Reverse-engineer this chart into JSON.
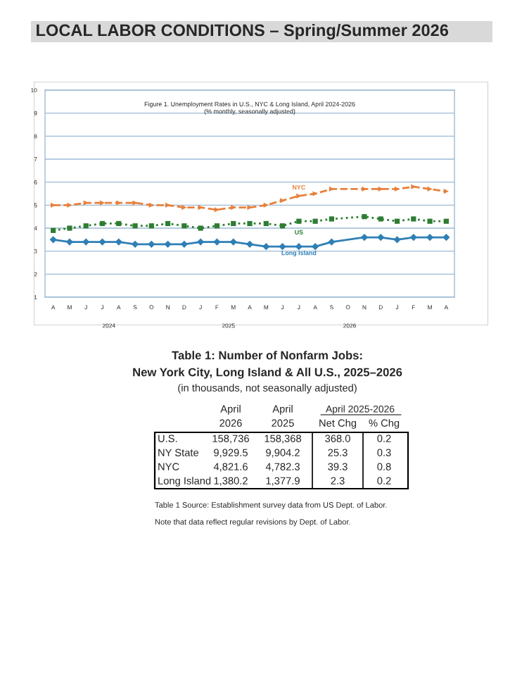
{
  "chart_data": [
    {
      "type": "other",
      "title": "LOCAL LABOR CONDITIONS – Spring/Summer 2026"
    },
    {
      "type": "line",
      "title": "Figure 1. Unemployment Rates in U.S., NYC & Long Island, April 2024-2026",
      "subtitle": "(% monthly, seasonally adjusted)",
      "categories": [
        "A",
        "M",
        "J",
        "J",
        "A",
        "S",
        "O",
        "N",
        "D",
        "J",
        "F",
        "M",
        "A",
        "M",
        "J",
        "J",
        "A",
        "S",
        "O",
        "N",
        "D",
        "J",
        "F",
        "M",
        "A"
      ],
      "series": [
        {
          "name": "NYC",
          "color": "#e8803c",
          "marker": "triangle",
          "line_style": "dashed",
          "values": [
            5.0,
            5.0,
            5.1,
            5.1,
            5.1,
            5.1,
            5.0,
            5.0,
            4.9,
            4.9,
            4.8,
            4.9,
            4.9,
            5.0,
            5.2,
            5.4,
            5.5,
            5.7,
            null,
            5.7,
            5.7,
            5.7,
            5.8,
            5.7,
            5.6
          ]
        },
        {
          "name": "US",
          "color": "#2e7d32",
          "marker": "square",
          "line_style": "dotted",
          "values": [
            3.9,
            4.0,
            4.1,
            4.2,
            4.2,
            4.1,
            4.1,
            4.2,
            4.1,
            4.0,
            4.1,
            4.2,
            4.2,
            4.2,
            4.1,
            4.3,
            4.3,
            4.4,
            null,
            4.5,
            4.4,
            4.3,
            4.4,
            4.3,
            4.3
          ]
        },
        {
          "name": "Long Island",
          "color": "#2f7fb5",
          "marker": "diamond",
          "line_style": "solid",
          "values": [
            3.5,
            3.4,
            3.4,
            3.4,
            3.4,
            3.3,
            3.3,
            3.3,
            3.3,
            3.4,
            3.4,
            3.4,
            3.3,
            3.2,
            3.2,
            3.2,
            3.2,
            3.4,
            null,
            3.6,
            3.6,
            3.5,
            3.6,
            3.6,
            3.6
          ]
        }
      ],
      "ylim": [
        1,
        10
      ],
      "yticks": [
        1,
        2,
        3,
        4,
        5,
        6,
        7,
        8,
        9,
        10
      ],
      "grid": "y",
      "legend": false,
      "annotations": [
        "2024",
        "2025",
        "2026"
      ]
    },
    {
      "type": "other",
      "title": "Table 1: Number of Nonfarm Jobs:",
      "subtitle": "New York City, Long Island & All U.S., 2025–2026",
      "xlabel": "(in thousands, not seasonally adjusted)",
      "categories": [
        "April\n2026",
        "April\n2025",
        "Net Chg",
        "% Chg"
      ],
      "y_categories": [
        "U.S.",
        "NY State",
        "NYC",
        "Long Island"
      ],
      "cell_labels": [
        [
          "158,736",
          "158,368",
          "368.0",
          "0.2"
        ],
        [
          "9,929.5",
          "9,904.2",
          "25.3",
          "0.3"
        ],
        [
          "4,821.6",
          "4,782.3",
          "39.3",
          "0.8"
        ],
        [
          "1,380.2",
          "1,377.9",
          "2.3",
          "0.2"
        ]
      ],
      "annotations": [
        "April 2025-2026",
        "Table 1 Source: Establishment survey data from US Dept. of Labor.",
        "Note that data reflect regular revisions by Dept. of Labor."
      ]
    }
  ]
}
